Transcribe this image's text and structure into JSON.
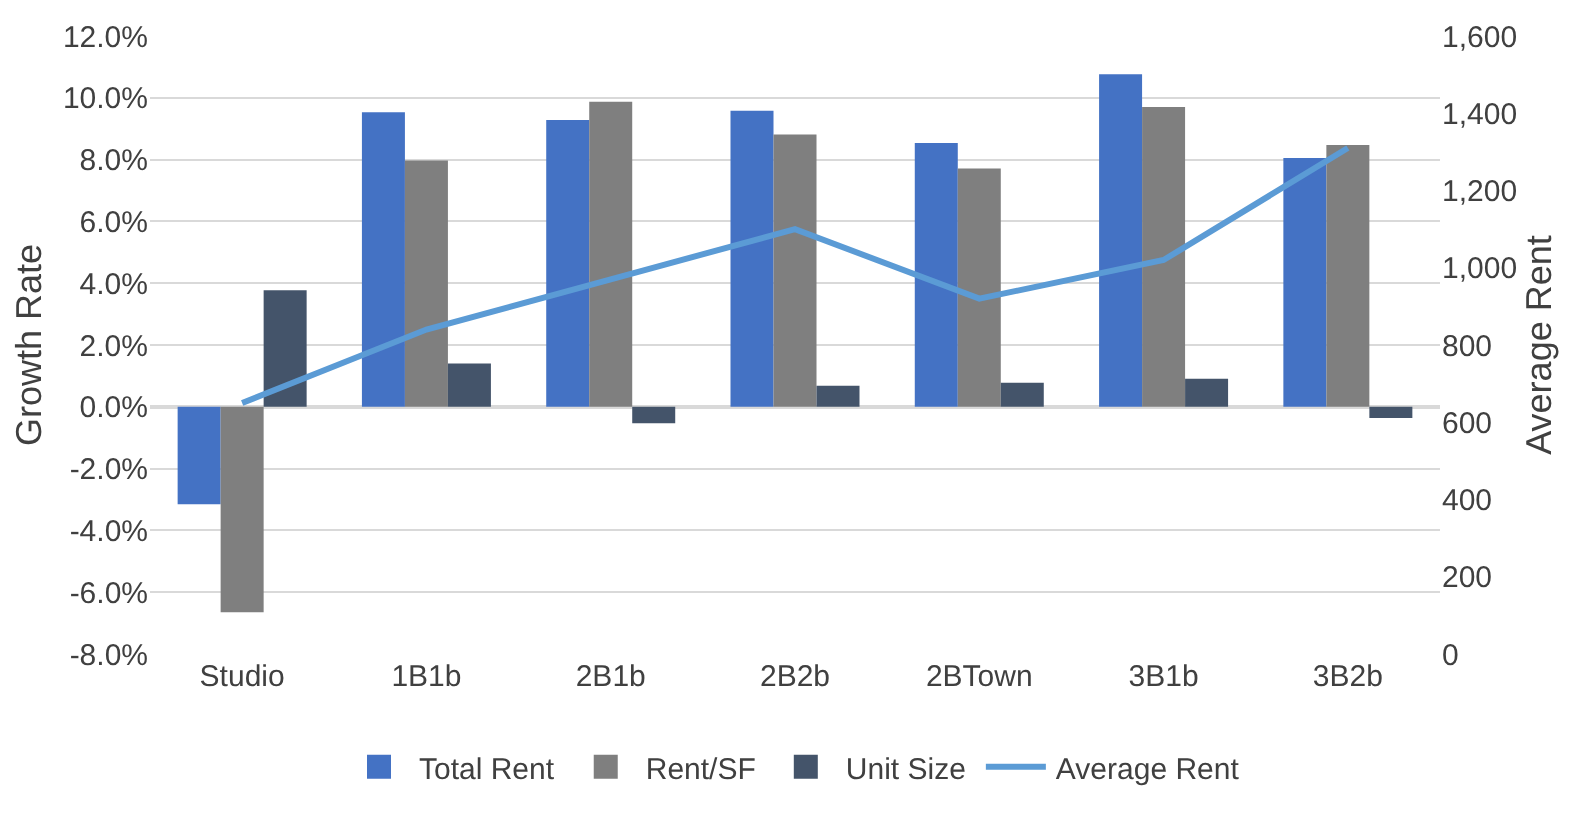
{
  "chart_data": {
    "type": "bar",
    "categories": [
      "Studio",
      "1B1b",
      "2B1b",
      "2B2b",
      "2BTown",
      "3B1b",
      "3B2b"
    ],
    "series": [
      {
        "name": "Total Rent",
        "color": "#4472c4",
        "values": [
          -3.15,
          9.53,
          9.28,
          9.58,
          8.54,
          10.76,
          8.05
        ]
      },
      {
        "name": "Rent/SF",
        "color": "#7f7f7f",
        "values": [
          -6.65,
          7.97,
          9.87,
          8.81,
          7.71,
          9.7,
          8.47
        ]
      },
      {
        "name": "Unit Size",
        "color": "#44546a",
        "values": [
          3.77,
          1.4,
          -0.53,
          0.68,
          0.78,
          0.91,
          -0.36
        ]
      },
      {
        "name": "Average Rent",
        "type": "line",
        "axis": "y2",
        "color": "#5b9bd5",
        "values": [
          650,
          840,
          970,
          1100,
          920,
          1020,
          1310
        ]
      }
    ],
    "ylabel": "Growth Rate",
    "y2label": "Average Rent",
    "ylim": [
      -8,
      12
    ],
    "yticks": [
      {
        "value": -8,
        "label": "-8.0%"
      },
      {
        "value": -6,
        "label": "-6.0%"
      },
      {
        "value": -4,
        "label": "-4.0%"
      },
      {
        "value": -2,
        "label": "-2.0%"
      },
      {
        "value": 0,
        "label": "0.0%"
      },
      {
        "value": 2,
        "label": "2.0%"
      },
      {
        "value": 4,
        "label": "4.0%"
      },
      {
        "value": 6,
        "label": "6.0%"
      },
      {
        "value": 8,
        "label": "8.0%"
      },
      {
        "value": 10,
        "label": "10.0%"
      },
      {
        "value": 12,
        "label": "12.0%"
      }
    ],
    "y2lim": [
      0,
      1600
    ],
    "y2ticks": [
      0,
      200,
      400,
      600,
      800,
      {
        "value": 1000,
        "label": "1,000"
      },
      {
        "value": 1200,
        "label": "1,200"
      },
      {
        "value": 1400,
        "label": "1,400"
      },
      {
        "value": 1600,
        "label": "1,600"
      }
    ],
    "grid": "y",
    "legend": "bottom",
    "marker": "none",
    "line_style": "solid"
  }
}
